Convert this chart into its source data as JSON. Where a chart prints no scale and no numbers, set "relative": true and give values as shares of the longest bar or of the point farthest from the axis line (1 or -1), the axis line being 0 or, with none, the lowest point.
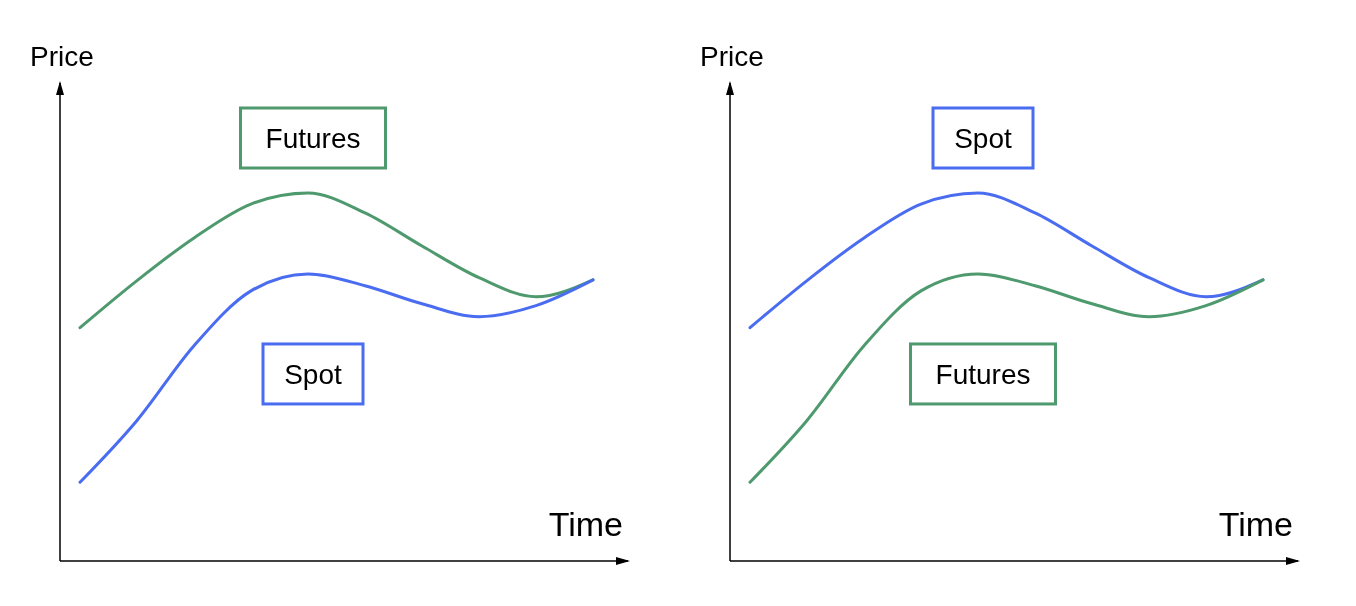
{
  "chart_data": [
    {
      "type": "line",
      "relative": true,
      "ylabel": "Price",
      "xlabel": "Time",
      "categories": [
        null,
        null,
        null,
        null,
        null,
        null,
        null,
        null,
        null,
        null
      ],
      "series": [
        {
          "name": "Futures",
          "color": "#4e9a6e",
          "values": [
            0.634,
            0.762,
            0.878,
            0.97,
            1.0,
            0.946,
            0.856,
            0.77,
            0.718,
            0.764
          ]
        },
        {
          "name": "Spot",
          "color": "#4a6cf0",
          "values": [
            0.214,
            0.382,
            0.585,
            0.734,
            0.78,
            0.748,
            0.699,
            0.664,
            0.694,
            0.764
          ]
        }
      ]
    },
    {
      "type": "line",
      "relative": true,
      "ylabel": "Price",
      "xlabel": "Time",
      "categories": [
        null,
        null,
        null,
        null,
        null,
        null,
        null,
        null,
        null,
        null
      ],
      "series": [
        {
          "name": "Spot",
          "color": "#4a6cf0",
          "values": [
            0.634,
            0.762,
            0.878,
            0.97,
            1.0,
            0.946,
            0.856,
            0.77,
            0.718,
            0.764
          ]
        },
        {
          "name": "Futures",
          "color": "#4e9a6e",
          "values": [
            0.214,
            0.382,
            0.585,
            0.734,
            0.78,
            0.748,
            0.699,
            0.664,
            0.694,
            0.764
          ]
        }
      ]
    }
  ]
}
